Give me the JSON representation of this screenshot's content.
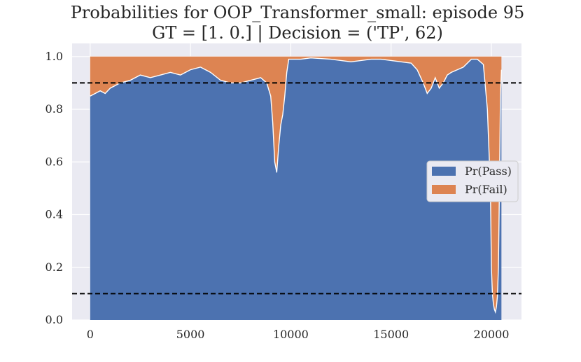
{
  "chart_data": {
    "type": "area",
    "title": "Probabilities for OOP_Transformer_small: episode 95",
    "subtitle": "GT = [1. 0.] | Decision = ('TP', 62)",
    "xlabel": "",
    "ylabel": "",
    "xlim": [
      -900,
      21500
    ],
    "ylim": [
      0.0,
      1.05
    ],
    "x_ticks": [
      0,
      5000,
      10000,
      15000,
      20000
    ],
    "x_tick_labels": [
      "0",
      "5000",
      "10000",
      "15000",
      "20000"
    ],
    "y_ticks": [
      0.0,
      0.2,
      0.4,
      0.6,
      0.8,
      1.0
    ],
    "y_tick_labels": [
      "0.0",
      "0.2",
      "0.4",
      "0.6",
      "0.8",
      "1.0"
    ],
    "grid": true,
    "legend_placement": "center-right",
    "thresholds": [
      0.9,
      0.1
    ],
    "x": [
      0,
      250,
      500,
      750,
      1000,
      1500,
      2000,
      2500,
      3000,
      3500,
      4000,
      4500,
      5000,
      5500,
      6000,
      6500,
      7000,
      7500,
      8000,
      8500,
      8800,
      9000,
      9100,
      9200,
      9300,
      9400,
      9500,
      9600,
      9700,
      9800,
      9900,
      10000,
      10500,
      11000,
      12000,
      13000,
      13500,
      14000,
      14500,
      15000,
      15500,
      16000,
      16300,
      16600,
      16800,
      17000,
      17200,
      17400,
      17600,
      17800,
      18000,
      18300,
      18600,
      19000,
      19300,
      19600,
      19800,
      19950,
      20000,
      20050,
      20100,
      20150,
      20200,
      20250,
      20300,
      20350,
      20400,
      20450,
      20500
    ],
    "series": [
      {
        "name": "Pr(Pass)",
        "values": [
          0.85,
          0.86,
          0.87,
          0.86,
          0.88,
          0.9,
          0.91,
          0.93,
          0.92,
          0.93,
          0.94,
          0.93,
          0.95,
          0.96,
          0.94,
          0.91,
          0.9,
          0.9,
          0.91,
          0.92,
          0.9,
          0.85,
          0.75,
          0.6,
          0.56,
          0.66,
          0.74,
          0.78,
          0.85,
          0.94,
          0.99,
          0.99,
          0.99,
          0.995,
          0.99,
          0.98,
          0.985,
          0.99,
          0.99,
          0.985,
          0.98,
          0.975,
          0.95,
          0.9,
          0.86,
          0.88,
          0.92,
          0.88,
          0.9,
          0.93,
          0.94,
          0.95,
          0.96,
          0.99,
          0.99,
          0.97,
          0.8,
          0.5,
          0.2,
          0.1,
          0.06,
          0.04,
          0.03,
          0.05,
          0.09,
          0.2,
          0.5,
          0.85,
          0.95
        ]
      },
      {
        "name": "Pr(Fail)",
        "values": [
          0.15,
          0.14,
          0.13,
          0.14,
          0.12,
          0.1,
          0.09,
          0.07,
          0.08,
          0.07,
          0.06,
          0.07,
          0.05,
          0.04,
          0.06,
          0.09,
          0.1,
          0.1,
          0.09,
          0.08,
          0.1,
          0.15,
          0.25,
          0.4,
          0.44,
          0.34,
          0.26,
          0.22,
          0.15,
          0.06,
          0.01,
          0.01,
          0.01,
          0.005,
          0.01,
          0.02,
          0.015,
          0.01,
          0.01,
          0.015,
          0.02,
          0.025,
          0.05,
          0.1,
          0.14,
          0.12,
          0.08,
          0.12,
          0.1,
          0.07,
          0.06,
          0.05,
          0.04,
          0.01,
          0.01,
          0.03,
          0.2,
          0.5,
          0.8,
          0.9,
          0.94,
          0.96,
          0.97,
          0.95,
          0.91,
          0.8,
          0.5,
          0.15,
          0.05
        ]
      }
    ],
    "colors": {
      "pass": "#4c72b0",
      "fail": "#dd8452",
      "plot_background": "#eaeaf2",
      "grid": "#ffffff",
      "threshold_line": "#000000",
      "pass_boundary": "#ffffff"
    }
  }
}
